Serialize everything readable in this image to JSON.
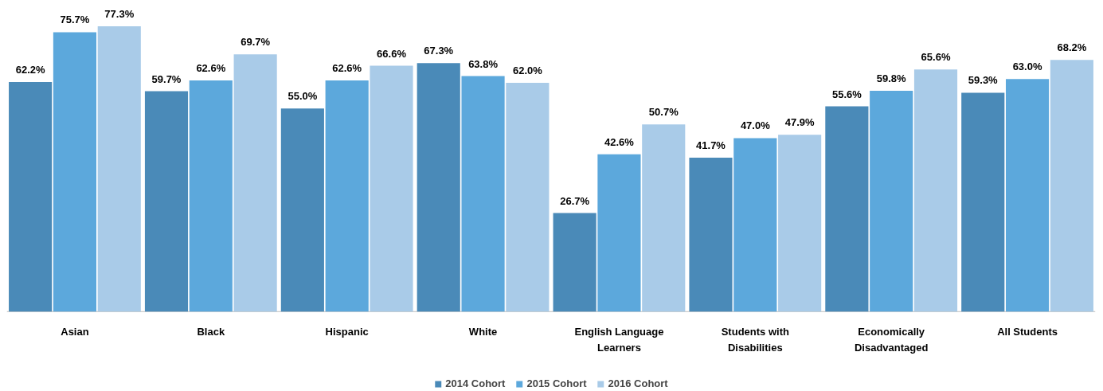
{
  "chart_data": {
    "type": "bar",
    "categories": [
      "Asian",
      "Black",
      "Hispanic",
      "White",
      "English Language\nLearners",
      "Students with\nDisabilities",
      "Economically\nDisadvantaged",
      "All Students"
    ],
    "series": [
      {
        "name": "2014 Cohort",
        "color": "#4a8ab8",
        "values": [
          62.2,
          59.7,
          55.0,
          67.3,
          26.7,
          41.7,
          55.6,
          59.3
        ],
        "value_labels": [
          "62.2%",
          "59.7%",
          "55.0%",
          "67.3%",
          "26.7%",
          "41.7%",
          "55.6%",
          "59.3%"
        ]
      },
      {
        "name": "2015 Cohort",
        "color": "#5ca8dc",
        "values": [
          75.7,
          62.6,
          62.6,
          63.8,
          42.6,
          47.0,
          59.8,
          63.0
        ],
        "value_labels": [
          "75.7%",
          "62.6%",
          "62.6%",
          "63.8%",
          "42.6%",
          "47.0%",
          "59.8%",
          "63.0%"
        ]
      },
      {
        "name": "2016 Cohort",
        "color": "#a9cbe8",
        "values": [
          77.3,
          69.7,
          66.6,
          62.0,
          50.7,
          47.9,
          65.6,
          68.2
        ],
        "value_labels": [
          "77.3%",
          "69.7%",
          "66.6%",
          "62.0%",
          "50.7%",
          "47.9%",
          "65.6%",
          "68.2%"
        ]
      }
    ],
    "legend": "bottom"
  }
}
